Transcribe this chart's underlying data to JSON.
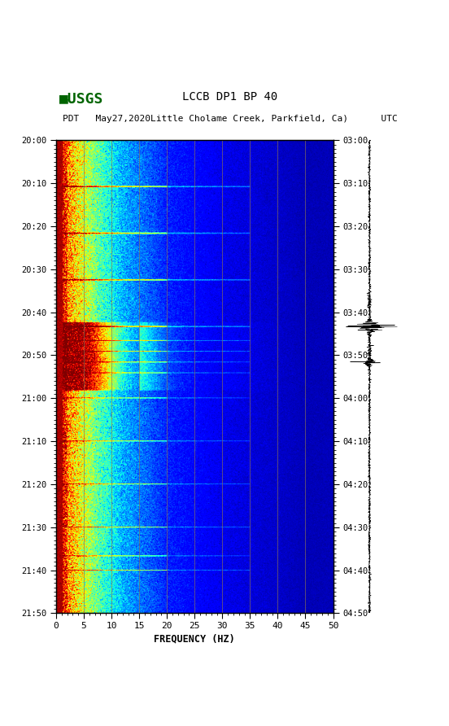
{
  "title_line1": "LCCB DP1 BP 40",
  "title_line2": "PDT   May27,2020Little Cholame Creek, Parkfield, Ca)      UTC",
  "xlabel": "FREQUENCY (HZ)",
  "freq_min": 0,
  "freq_max": 50,
  "freq_ticks": [
    0,
    5,
    10,
    15,
    20,
    25,
    30,
    35,
    40,
    45,
    50
  ],
  "time_ticks_pdt": [
    "20:00",
    "20:10",
    "20:20",
    "20:30",
    "20:40",
    "20:50",
    "21:00",
    "21:10",
    "21:20",
    "21:30",
    "21:40",
    "21:50"
  ],
  "time_ticks_utc": [
    "03:00",
    "03:10",
    "03:20",
    "03:30",
    "03:40",
    "03:50",
    "04:00",
    "04:10",
    "04:20",
    "04:30",
    "04:40",
    "04:50"
  ],
  "vlines_freq": [
    5,
    10,
    15,
    20,
    25,
    30,
    35,
    40,
    45
  ],
  "vline_color": "#8B7355",
  "background_color": "#ffffff",
  "fig_width": 5.52,
  "fig_height": 8.92,
  "n_time": 660,
  "n_freq": 500,
  "spectrogram_seed": 42
}
